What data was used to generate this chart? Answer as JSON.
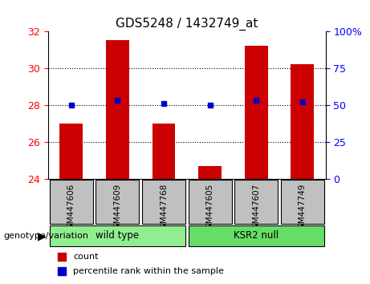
{
  "title": "GDS5248 / 1432749_at",
  "samples": [
    "GSM447606",
    "GSM447609",
    "GSM447768",
    "GSM447605",
    "GSM447607",
    "GSM447749"
  ],
  "groups": [
    "wild type",
    "wild type",
    "wild type",
    "KSR2 null",
    "KSR2 null",
    "KSR2 null"
  ],
  "group_labels": [
    "wild type",
    "KSR2 null"
  ],
  "group_colors": [
    "#90EE90",
    "#00CC00"
  ],
  "count_values": [
    27.0,
    31.5,
    27.0,
    24.7,
    31.2,
    30.2
  ],
  "percentile_values": [
    50,
    53,
    51,
    50,
    53,
    52
  ],
  "ylim_left": [
    24,
    32
  ],
  "ylim_right": [
    0,
    100
  ],
  "yticks_left": [
    24,
    26,
    28,
    30,
    32
  ],
  "yticks_right": [
    0,
    25,
    50,
    75,
    100
  ],
  "ytick_labels_right": [
    "0",
    "25",
    "50",
    "75",
    "100%"
  ],
  "bar_color": "#CC0000",
  "dot_color": "#0000CC",
  "bar_width": 0.4,
  "grid_color": "black",
  "grid_linestyle": ":",
  "grid_linewidth": 0.8,
  "grid_yticks": [
    26,
    28,
    30
  ],
  "legend_count_label": "count",
  "legend_percentile_label": "percentile rank within the sample",
  "genotype_label": "genotype/variation",
  "xlabel_color": "red",
  "ylabel_right_color": "blue",
  "sample_box_color": "#C0C0C0",
  "base_value": 24
}
